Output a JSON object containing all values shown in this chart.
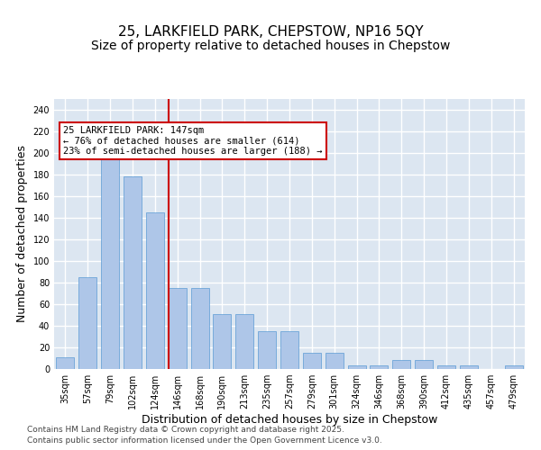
{
  "title_line1": "25, LARKFIELD PARK, CHEPSTOW, NP16 5QY",
  "title_line2": "Size of property relative to detached houses in Chepstow",
  "xlabel": "Distribution of detached houses by size in Chepstow",
  "ylabel": "Number of detached properties",
  "categories": [
    "35sqm",
    "57sqm",
    "79sqm",
    "102sqm",
    "124sqm",
    "146sqm",
    "168sqm",
    "190sqm",
    "213sqm",
    "235sqm",
    "257sqm",
    "279sqm",
    "301sqm",
    "324sqm",
    "346sqm",
    "368sqm",
    "390sqm",
    "412sqm",
    "435sqm",
    "457sqm",
    "479sqm"
  ],
  "values": [
    11,
    85,
    196,
    178,
    145,
    75,
    75,
    51,
    51,
    35,
    35,
    15,
    15,
    3,
    3,
    8,
    8,
    3,
    3,
    0,
    3
  ],
  "bar_color": "#aec6e8",
  "bar_edge_color": "#5b9bd5",
  "background_color": "#dce6f1",
  "grid_color": "#ffffff",
  "annotation_text": "25 LARKFIELD PARK: 147sqm\n← 76% of detached houses are smaller (614)\n23% of semi-detached houses are larger (188) →",
  "annotation_box_color": "#ffffff",
  "annotation_box_edge": "#cc0000",
  "vline_color": "#cc0000",
  "vline_x": 4.6,
  "ylim": [
    0,
    250
  ],
  "yticks": [
    0,
    20,
    40,
    60,
    80,
    100,
    120,
    140,
    160,
    180,
    200,
    220,
    240
  ],
  "footer_line1": "Contains HM Land Registry data © Crown copyright and database right 2025.",
  "footer_line2": "Contains public sector information licensed under the Open Government Licence v3.0.",
  "title_fontsize": 11,
  "subtitle_fontsize": 10,
  "tick_fontsize": 7,
  "label_fontsize": 9
}
